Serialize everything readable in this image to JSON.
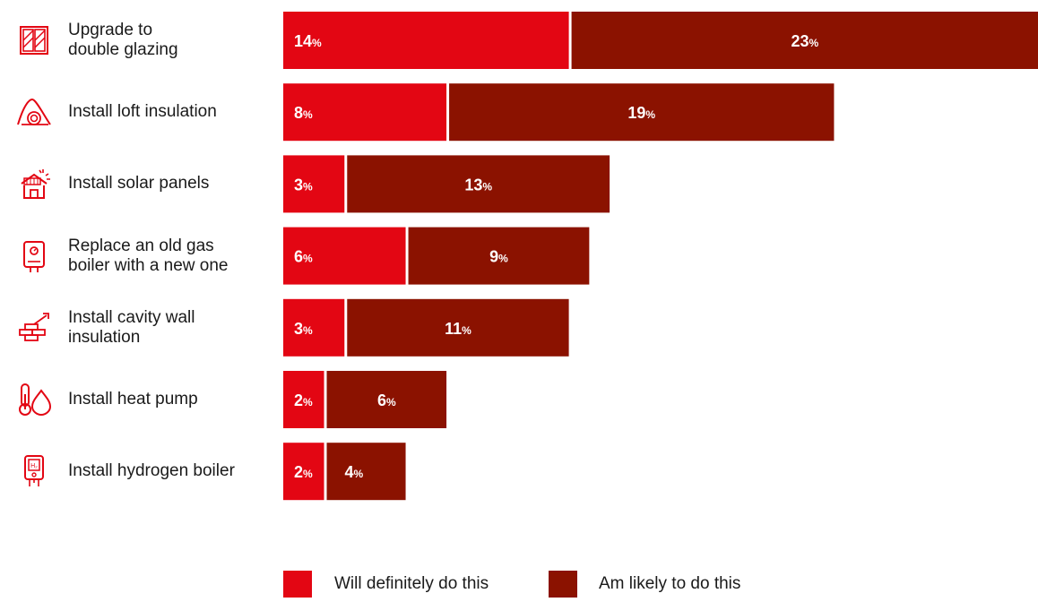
{
  "chart_data": {
    "type": "bar",
    "orientation": "horizontal",
    "stacked": true,
    "categories": [
      "Upgrade to double glazing",
      "Install loft insulation",
      "Install solar panels",
      "Replace an old gas boiler with a new one",
      "Install cavity wall insulation",
      "Install heat pump",
      "Install hydrogen boiler"
    ],
    "category_lines": [
      [
        "Upgrade to",
        "double glazing"
      ],
      [
        "Install loft insulation"
      ],
      [
        "Install solar panels"
      ],
      [
        "Replace an old gas",
        "boiler with a new one"
      ],
      [
        "Install cavity wall",
        "insulation"
      ],
      [
        "Install heat pump"
      ],
      [
        "Install hydrogen boiler"
      ]
    ],
    "icons": [
      "window-icon",
      "loft-insulation-icon",
      "solar-house-icon",
      "gas-boiler-icon",
      "cavity-wall-icon",
      "heat-pump-icon",
      "hydrogen-boiler-icon"
    ],
    "series": [
      {
        "name": "Will definitely do this",
        "color": "#e30613",
        "values": [
          14,
          8,
          3,
          6,
          3,
          2,
          2
        ]
      },
      {
        "name": "Am likely to do this",
        "color": "#8b1200",
        "values": [
          23,
          19,
          13,
          9,
          11,
          6,
          4
        ]
      }
    ],
    "value_suffix": "%",
    "xlim": [
      0,
      37
    ],
    "grid": false,
    "legend_position": "bottom"
  }
}
